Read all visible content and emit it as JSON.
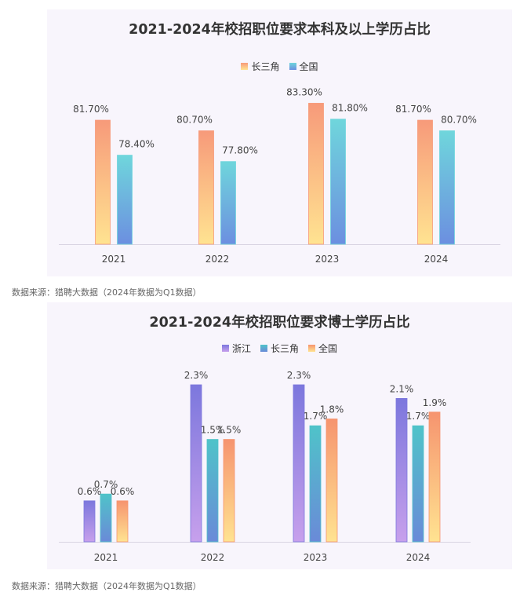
{
  "chart_data": [
    {
      "type": "bar",
      "title": "2021-2024年校招职位要求本科及以上学历占比",
      "categories": [
        "2021",
        "2022",
        "2023",
        "2024"
      ],
      "series": [
        {
          "name": "长三角",
          "values": [
            81.7,
            80.7,
            83.3,
            81.7
          ],
          "labels": [
            "81.70%",
            "80.70%",
            "83.30%",
            "81.70%"
          ],
          "color_top": "#f79a7a",
          "color_bottom": "#ffe391"
        },
        {
          "name": "全国",
          "values": [
            78.4,
            77.8,
            81.8,
            80.7
          ],
          "labels": [
            "78.40%",
            "77.80%",
            "81.80%",
            "80.70%"
          ],
          "color_top": "#6fd6dc",
          "color_bottom": "#6c8fe0"
        }
      ],
      "ylim": [
        70,
        84
      ],
      "xlabel": "",
      "ylabel": "",
      "legend": "top-center",
      "grid": false
    },
    {
      "type": "bar",
      "title": "2021-2024年校招职位要求博士学历占比",
      "categories": [
        "2021",
        "2022",
        "2023",
        "2024"
      ],
      "series": [
        {
          "name": "浙江",
          "values": [
            0.6,
            2.3,
            2.3,
            2.1
          ],
          "labels": [
            "0.6%",
            "2.3%",
            "2.3%",
            "2.1%"
          ],
          "color_top": "#7c77dd",
          "color_bottom": "#c7a0ec"
        },
        {
          "name": "长三角",
          "values": [
            0.7,
            1.5,
            1.7,
            1.7
          ],
          "labels": [
            "0.7%",
            "1.5%",
            "1.7%",
            "1.7%"
          ],
          "color_top": "#4fc3c9",
          "color_bottom": "#6a8ad8"
        },
        {
          "name": "全国",
          "values": [
            0.6,
            1.5,
            1.8,
            1.9
          ],
          "labels": [
            "0.6%",
            "1.5%",
            "1.8%",
            "1.9%"
          ],
          "color_top": "#f6946f",
          "color_bottom": "#ffe391"
        }
      ],
      "ylim": [
        0,
        2.3
      ],
      "xlabel": "",
      "ylabel": "",
      "legend": "top-center",
      "grid": false
    }
  ],
  "sources": [
    "数据来源：猎聘大数据（2024年数据为Q1数据）",
    "数据来源：猎聘大数据（2024年数据为Q1数据）"
  ]
}
